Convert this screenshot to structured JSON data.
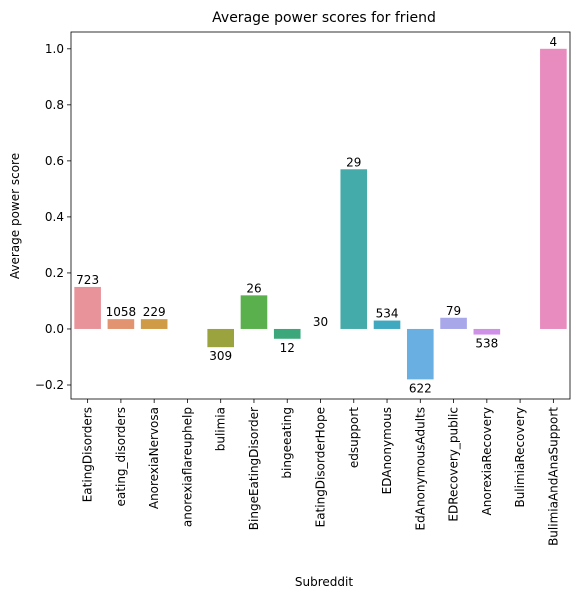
{
  "chart_data": {
    "type": "bar",
    "title": "Average power scores for friend",
    "xlabel": "Subreddit",
    "ylabel": "Average power score",
    "ylim": [
      -0.25,
      1.06
    ],
    "yticks": [
      -0.2,
      0.0,
      0.2,
      0.4,
      0.6,
      0.8,
      1.0
    ],
    "ytick_labels": [
      "−0.2",
      "0.0",
      "0.2",
      "0.4",
      "0.6",
      "0.8",
      "1.0"
    ],
    "grid": false,
    "categories": [
      "EatingDisorders",
      "eating_disorders",
      "AnorexiaNervosa",
      "anorexiaflareuphelp",
      "bulimia",
      "BingeEatingDisorder",
      "bingeeating",
      "EatingDisorderHope",
      "edsupport",
      "EDAnonymous",
      "EdAnonymousAdults",
      "EDRecovery_public",
      "AnorexiaRecovery",
      "BulimiaRecovery",
      "BulimiaAndAnaSupport"
    ],
    "values": [
      0.15,
      0.035,
      0.035,
      null,
      -0.065,
      0.12,
      -0.035,
      0.0,
      0.57,
      0.03,
      -0.18,
      0.04,
      -0.02,
      null,
      1.0
    ],
    "data_labels": [
      "723",
      "1058",
      "229",
      "",
      "309",
      "26",
      "12",
      "30",
      "29",
      "534",
      "622",
      "79",
      "538",
      "",
      "4"
    ],
    "colors": [
      "#e8939a",
      "#e29470",
      "#d09b47",
      "#bfa13e",
      "#9aa33d",
      "#5ab04c",
      "#3ba77a",
      "#40a89a",
      "#45aaaa",
      "#40a9bf",
      "#6aafe2",
      "#a7a7ea",
      "#cf91e7",
      "#e58cd0",
      "#e88bbf"
    ]
  }
}
